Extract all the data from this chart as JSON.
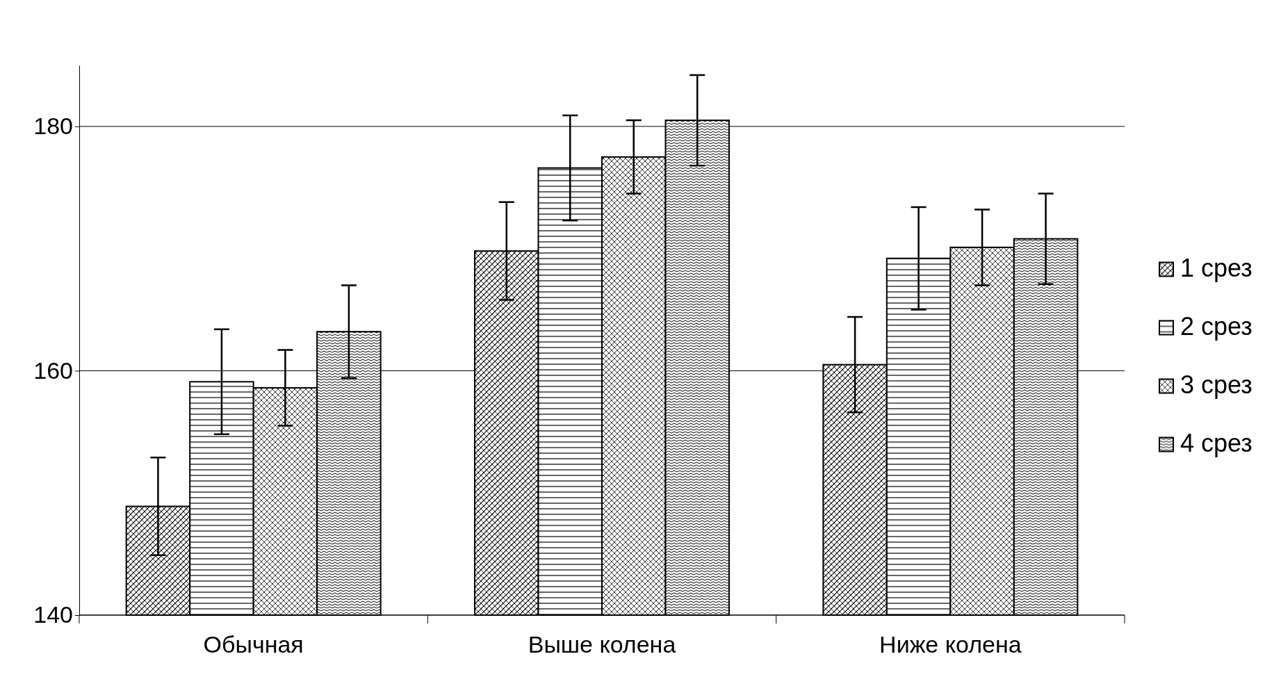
{
  "chart_data": {
    "type": "bar",
    "categories": [
      "Обычная",
      "Выше колена",
      "Ниже колена"
    ],
    "series": [
      {
        "name": "1 срез",
        "color": "#000000",
        "values": [
          148.9,
          169.8,
          160.5
        ],
        "errors": [
          4,
          4,
          3.9
        ]
      },
      {
        "name": "2 срез",
        "color": "#000000",
        "values": [
          159.1,
          176.6,
          169.2
        ],
        "errors": [
          4.3,
          4.3,
          4.2
        ]
      },
      {
        "name": "3 срез",
        "color": "#000000",
        "values": [
          158.6,
          177.5,
          170.1
        ],
        "errors": [
          3.1,
          3,
          3.1
        ]
      },
      {
        "name": "4 срез",
        "color": "#000000",
        "values": [
          163.2,
          180.5,
          170.8
        ],
        "errors": [
          3.8,
          3.7,
          3.7
        ]
      }
    ],
    "ylim": [
      140,
      185
    ],
    "yticks": [
      140,
      160,
      180
    ],
    "grid": "y",
    "legend": "right"
  }
}
